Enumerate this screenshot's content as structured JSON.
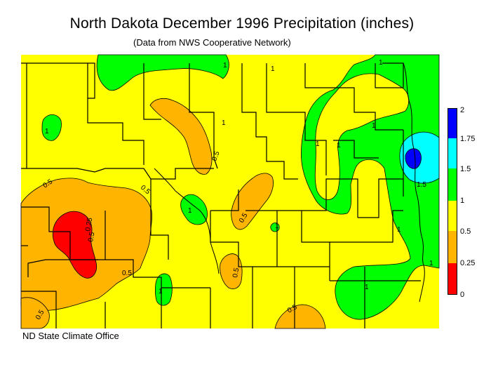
{
  "title": "North Dakota December 1996 Precipitation (inches)",
  "subtitle": "(Data from NWS Cooperative Network)",
  "credit": "ND State Climate Office",
  "legend": [
    {
      "label": "2",
      "color": "#0000ff"
    },
    {
      "label": "1.75",
      "color": "#00ffff"
    },
    {
      "label": "1.5",
      "color": "#00ff00"
    },
    {
      "label": "1",
      "color": "#ffff00"
    },
    {
      "label": "0.5",
      "color": "#ffb400"
    },
    {
      "label": "0.25",
      "color": "#ff0000"
    },
    {
      "label": "0",
      "color": ""
    }
  ],
  "contour_labels": [
    "1",
    "1",
    "1",
    "1",
    "1",
    "1",
    "1",
    "1",
    "1",
    "1",
    "1",
    "1",
    "1",
    "1",
    "0.5",
    "0.5",
    "0.5",
    "0.5",
    "0.5",
    "0.5",
    "0.5",
    "0.5",
    "0.5",
    "0.25",
    "1.5"
  ]
}
